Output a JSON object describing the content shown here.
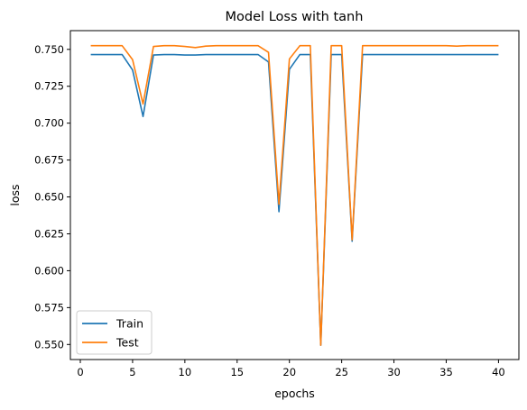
{
  "chart_data": {
    "type": "line",
    "title": "Model Loss with tanh",
    "xlabel": "epochs",
    "ylabel": "loss",
    "xlim": [
      -0.95,
      41.95
    ],
    "ylim": [
      0.5398,
      0.7627
    ],
    "xticks": [
      0,
      5,
      10,
      15,
      20,
      25,
      30,
      35,
      40
    ],
    "yticks": [
      0.55,
      0.575,
      0.6,
      0.625,
      0.65,
      0.675,
      0.7,
      0.725,
      0.75
    ],
    "ytick_labels": [
      "0.550",
      "0.575",
      "0.600",
      "0.625",
      "0.650",
      "0.675",
      "0.700",
      "0.725",
      "0.750"
    ],
    "grid": false,
    "legend": "lower-left",
    "x": [
      1,
      2,
      3,
      4,
      5,
      6,
      7,
      8,
      9,
      10,
      11,
      12,
      13,
      14,
      15,
      16,
      17,
      18,
      19,
      20,
      21,
      22,
      23,
      24,
      25,
      26,
      27,
      28,
      29,
      30,
      31,
      32,
      33,
      34,
      35,
      36,
      37,
      38,
      39,
      40
    ],
    "series": [
      {
        "name": "Train",
        "color": "#1f77b4",
        "values": [
          0.7465,
          0.7465,
          0.7465,
          0.7465,
          0.736,
          0.7045,
          0.7462,
          0.7465,
          0.7465,
          0.7462,
          0.7462,
          0.7465,
          0.7465,
          0.7465,
          0.7465,
          0.7465,
          0.7465,
          0.7415,
          0.64,
          0.7365,
          0.7465,
          0.7465,
          0.5495,
          0.7465,
          0.7465,
          0.62,
          0.7465,
          0.7465,
          0.7465,
          0.7465,
          0.7465,
          0.7465,
          0.7465,
          0.7465,
          0.7465,
          0.7465,
          0.7465,
          0.7465,
          0.7465,
          0.7465
        ]
      },
      {
        "name": "Test",
        "color": "#ff7f0e",
        "values": [
          0.7525,
          0.7525,
          0.7525,
          0.7525,
          0.743,
          0.713,
          0.752,
          0.7525,
          0.7525,
          0.752,
          0.7512,
          0.7522,
          0.7525,
          0.7525,
          0.7525,
          0.7525,
          0.7525,
          0.748,
          0.645,
          0.7435,
          0.7525,
          0.7525,
          0.5495,
          0.7525,
          0.7525,
          0.621,
          0.7525,
          0.7525,
          0.7525,
          0.7525,
          0.7525,
          0.7525,
          0.7525,
          0.7525,
          0.7525,
          0.7522,
          0.7525,
          0.7525,
          0.7525,
          0.7525
        ]
      }
    ]
  }
}
